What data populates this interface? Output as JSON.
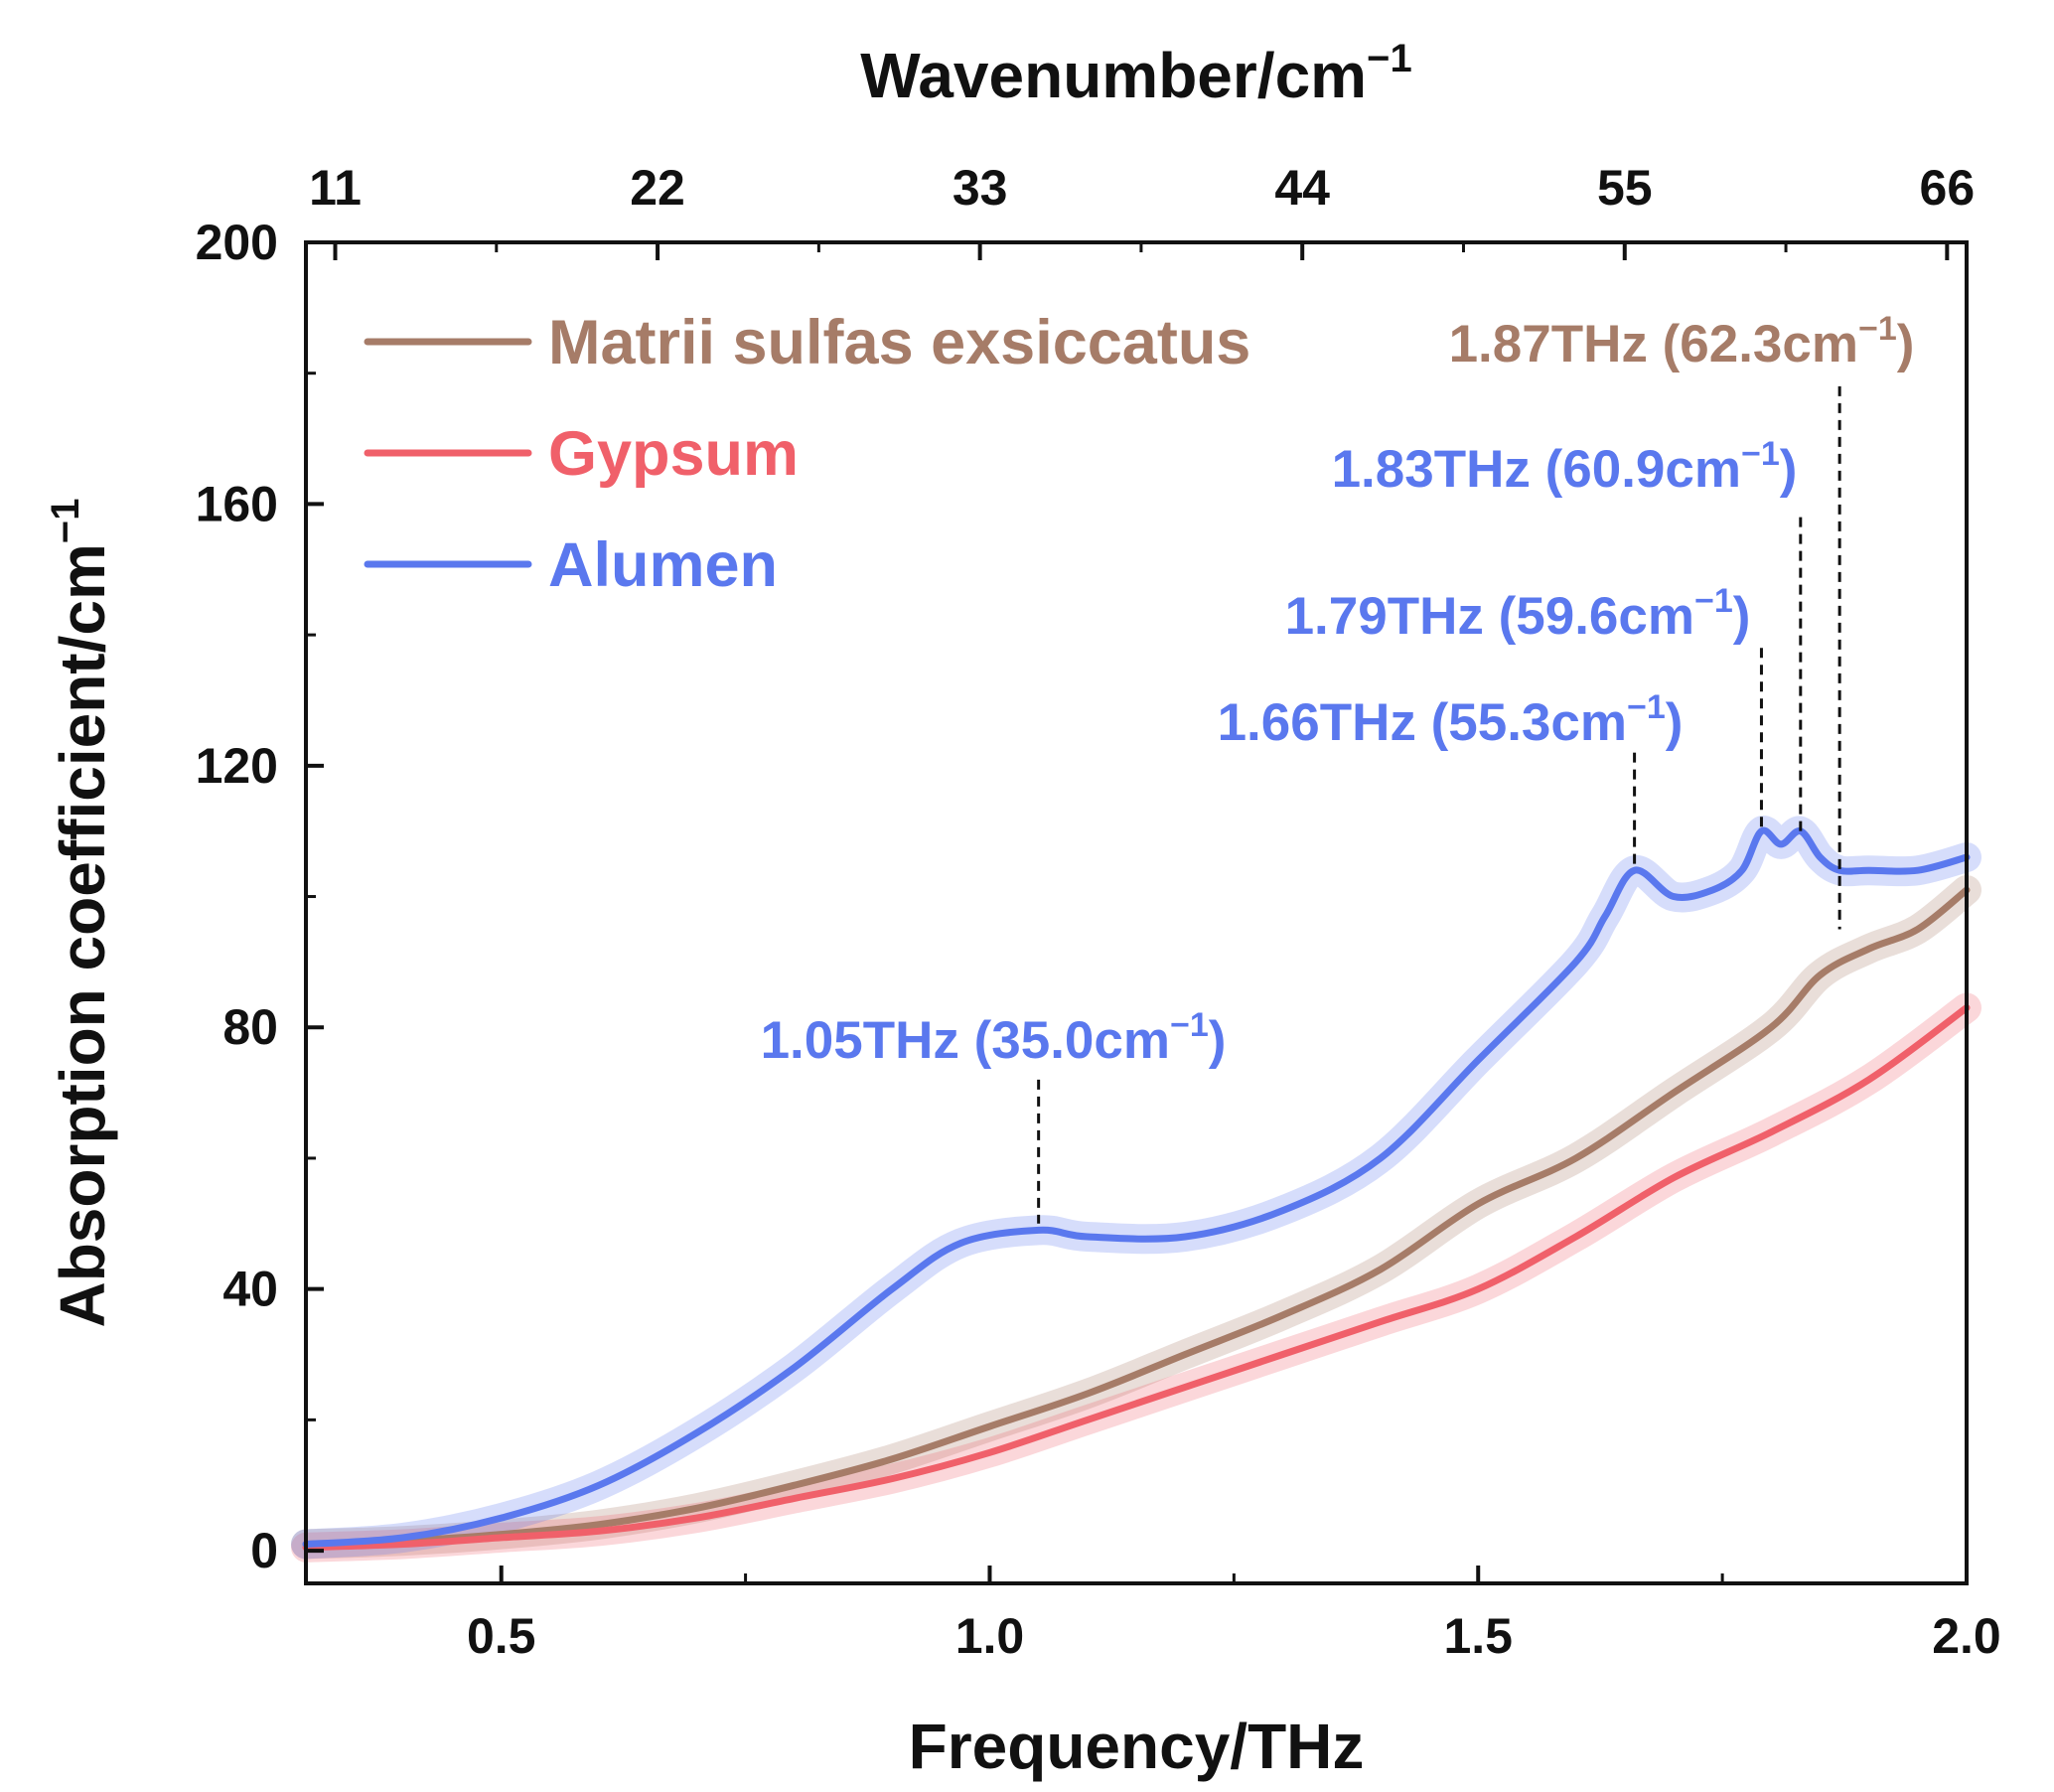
{
  "chart_data": {
    "type": "line",
    "title": "",
    "xlabel": "Frequency/THz",
    "ylabel_text": "Absorption coefficient/cm",
    "ylabel_sup": "−1",
    "top_xlabel_text": "Wavenumber/cm",
    "top_xlabel_sup": "−1",
    "xlim": [
      0.3,
      2.0
    ],
    "ylim": [
      -5,
      200
    ],
    "x_ticks": [
      0.5,
      1.0,
      1.5,
      2.0
    ],
    "x_tick_labels": [
      "0.5",
      "1.0",
      "1.5",
      "2.0"
    ],
    "y_ticks": [
      0,
      40,
      80,
      120,
      160,
      200
    ],
    "y_tick_labels": [
      "0",
      "40",
      "80",
      "120",
      "160",
      "200"
    ],
    "top_ticks_thz": [
      0.33,
      0.66,
      0.99,
      1.32,
      1.65,
      1.98
    ],
    "top_tick_labels": [
      "11",
      "22",
      "33",
      "44",
      "55",
      "66"
    ],
    "grid": false,
    "legend_position": "top-left",
    "series": [
      {
        "name": "Matrii sulfas exsiccatus",
        "color": "#a67c68",
        "x": [
          0.3,
          0.4,
          0.5,
          0.6,
          0.7,
          0.8,
          0.9,
          1.0,
          1.1,
          1.2,
          1.3,
          1.4,
          1.5,
          1.6,
          1.7,
          1.8,
          1.85,
          1.9,
          1.95,
          2.0
        ],
        "y": [
          1,
          1.5,
          2.5,
          4,
          6.5,
          10,
          14,
          19,
          24,
          30,
          36,
          43,
          53,
          60,
          70,
          80,
          88,
          92,
          95,
          101
        ]
      },
      {
        "name": "Gypsum",
        "color": "#f0606a",
        "x": [
          0.3,
          0.4,
          0.5,
          0.6,
          0.7,
          0.8,
          0.9,
          1.0,
          1.1,
          1.2,
          1.3,
          1.4,
          1.5,
          1.6,
          1.7,
          1.8,
          1.9,
          2.0
        ],
        "y": [
          0.5,
          1,
          2,
          3,
          5,
          8,
          11,
          15,
          20,
          25,
          30,
          35,
          40,
          48,
          57,
          64,
          72,
          83
        ]
      },
      {
        "name": "Alumen",
        "color": "#5a78ee",
        "x": [
          0.3,
          0.4,
          0.5,
          0.6,
          0.7,
          0.8,
          0.9,
          0.97,
          1.05,
          1.1,
          1.2,
          1.3,
          1.4,
          1.5,
          1.6,
          1.63,
          1.66,
          1.7,
          1.74,
          1.77,
          1.79,
          1.81,
          1.83,
          1.85,
          1.87,
          1.9,
          1.95,
          2.0
        ],
        "y": [
          1,
          2,
          5,
          10,
          18,
          28,
          40,
          47,
          49,
          48,
          48,
          52,
          60,
          75,
          90,
          97,
          104,
          100,
          101,
          104,
          110,
          108,
          110,
          106,
          104,
          104,
          104,
          106
        ]
      }
    ],
    "annotations": [
      {
        "x": 1.05,
        "y_top": 72,
        "y_bottom": 50,
        "text": "1.05THz (35.0cm",
        "sup": "−1",
        "close": ")",
        "color": "#5a78ee"
      },
      {
        "x": 1.66,
        "y_top": 122,
        "y_bottom": 104,
        "text": "1.66THz (55.3cm",
        "sup": "−1",
        "close": ")",
        "color": "#5a78ee"
      },
      {
        "x": 1.79,
        "y_top": 138,
        "y_bottom": 110,
        "text": "1.79THz (59.6cm",
        "sup": "−1",
        "close": ")",
        "color": "#5a78ee"
      },
      {
        "x": 1.83,
        "y_top": 158,
        "y_bottom": 110,
        "text": "1.83THz (60.9cm",
        "sup": "−1",
        "close": ")",
        "color": "#5a78ee"
      },
      {
        "x": 1.87,
        "y_top": 178,
        "y_bottom": 95,
        "text": "1.87THz (62.3cm",
        "sup": "−1",
        "close": ")",
        "color": "#a67c68"
      }
    ]
  }
}
